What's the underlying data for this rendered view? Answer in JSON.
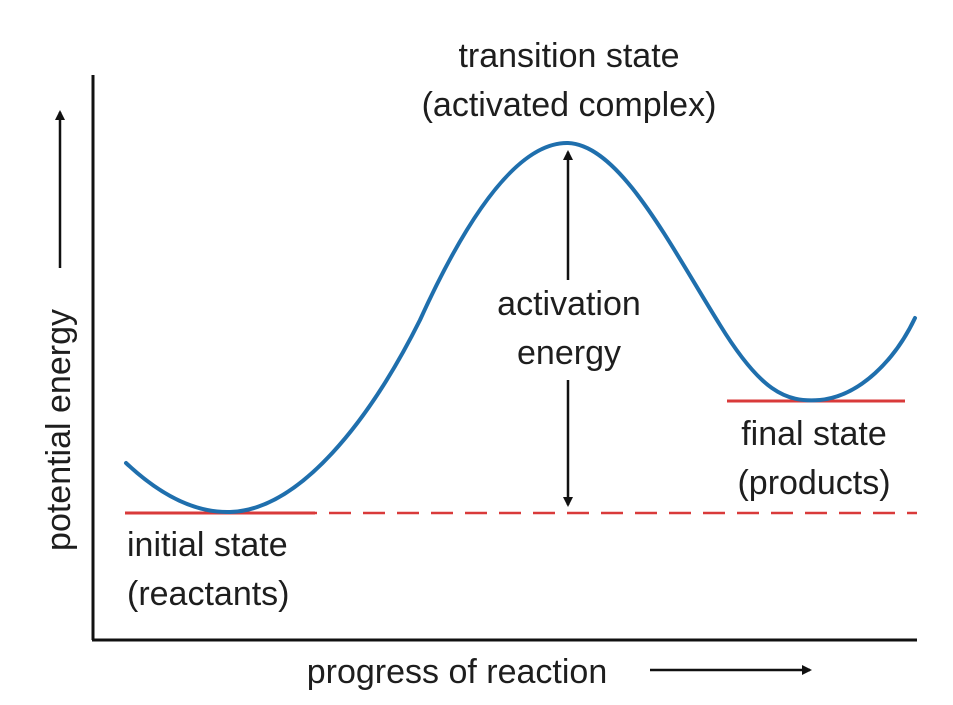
{
  "diagram": {
    "title": "",
    "x_axis_label": "progress of reaction",
    "y_axis_label": "potential energy",
    "transition_state": {
      "line1": "transition state",
      "line2": "(activated complex)"
    },
    "activation_energy": {
      "line1": "activation",
      "line2": "energy"
    },
    "initial_state": {
      "line1": "initial state",
      "line2": "(reactants)"
    },
    "final_state": {
      "line1": "final state",
      "line2": "(products)"
    },
    "colors": {
      "curve": "#1f6fad",
      "energy_level": "#d93a3a",
      "axes": "#111111",
      "text": "#1e1e1e"
    },
    "icons": [
      "y-axis-arrow-icon",
      "x-axis-arrow-icon",
      "activation-energy-double-arrow-icon"
    ]
  }
}
